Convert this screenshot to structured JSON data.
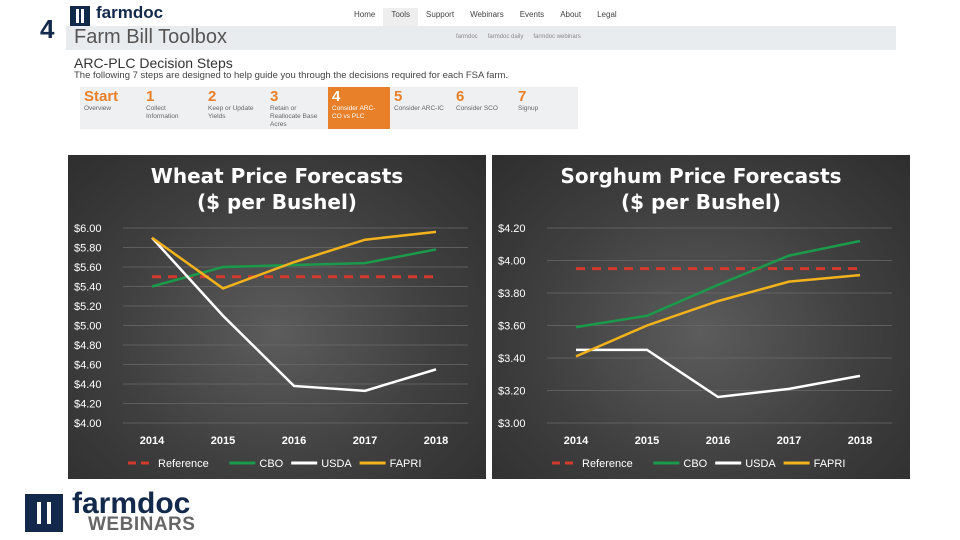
{
  "slide_number": "4",
  "site": {
    "brand": "farmdoc",
    "nav": [
      "Home",
      "Tools",
      "Support",
      "Webinars",
      "Events",
      "About",
      "Legal"
    ],
    "active_nav": "Tools",
    "toolbox_title": "Farm Bill Toolbox",
    "subnav": [
      "farmdoc",
      "farmdoc daily",
      "farmdoc webinars"
    ]
  },
  "steps_section": {
    "title": "ARC-PLC Decision Steps",
    "description": "The following 7 steps are designed to help guide you through the decisions required for each FSA farm.",
    "steps": [
      {
        "num": "Start",
        "label": "Overview"
      },
      {
        "num": "1",
        "label": "Collect Information"
      },
      {
        "num": "2",
        "label": "Keep or Update Yields"
      },
      {
        "num": "3",
        "label": "Retain or Reallocate Base Acres"
      },
      {
        "num": "4",
        "label": "Consider ARC-CO vs PLC"
      },
      {
        "num": "5",
        "label": "Consider ARC-IC"
      },
      {
        "num": "6",
        "label": "Consider SCO"
      },
      {
        "num": "7",
        "label": "Signup"
      }
    ],
    "active_step": "4"
  },
  "colors": {
    "Reference": "#d23a2e",
    "CBO": "#1a9a4a",
    "USDA": "#ffffff",
    "FAPRI": "#f2b21c"
  },
  "chart_data": [
    {
      "type": "line",
      "title": "Wheat Price Forecasts",
      "subtitle": "($ per Bushel)",
      "x": [
        "2014",
        "2015",
        "2016",
        "2017",
        "2018"
      ],
      "ylim": [
        4.0,
        6.0
      ],
      "yticks": [
        "$6.00",
        "$5.80",
        "$5.60",
        "$5.40",
        "$5.20",
        "$5.00",
        "$4.80",
        "$4.60",
        "$4.40",
        "$4.20",
        "$4.00"
      ],
      "grid": true,
      "legend_position": "bottom",
      "series": [
        {
          "name": "Reference",
          "style": "dashed",
          "values": [
            5.5,
            5.5,
            5.5,
            5.5,
            5.5
          ]
        },
        {
          "name": "CBO",
          "style": "solid",
          "values": [
            5.4,
            5.6,
            5.62,
            5.64,
            5.78
          ]
        },
        {
          "name": "USDA",
          "style": "solid",
          "values": [
            5.9,
            5.1,
            4.38,
            4.33,
            4.55
          ]
        },
        {
          "name": "FAPRI",
          "style": "solid",
          "values": [
            5.9,
            5.38,
            5.65,
            5.88,
            5.96
          ]
        }
      ]
    },
    {
      "type": "line",
      "title": "Sorghum Price Forecasts",
      "subtitle": "($ per Bushel)",
      "x": [
        "2014",
        "2015",
        "2016",
        "2017",
        "2018"
      ],
      "ylim": [
        3.0,
        4.2
      ],
      "yticks": [
        "$4.20",
        "$4.00",
        "$3.80",
        "$3.60",
        "$3.40",
        "$3.20",
        "$3.00"
      ],
      "grid": true,
      "legend_position": "bottom",
      "series": [
        {
          "name": "Reference",
          "style": "dashed",
          "values": [
            3.95,
            3.95,
            3.95,
            3.95,
            3.95
          ]
        },
        {
          "name": "CBO",
          "style": "solid",
          "values": [
            3.59,
            3.66,
            3.85,
            4.03,
            4.12
          ]
        },
        {
          "name": "USDA",
          "style": "solid",
          "values": [
            3.45,
            3.45,
            3.16,
            3.21,
            3.29
          ]
        },
        {
          "name": "FAPRI",
          "style": "solid",
          "values": [
            3.41,
            3.6,
            3.75,
            3.87,
            3.91
          ]
        }
      ]
    }
  ],
  "footer": {
    "brand": "farmdoc",
    "sub": "WEBINARS"
  }
}
